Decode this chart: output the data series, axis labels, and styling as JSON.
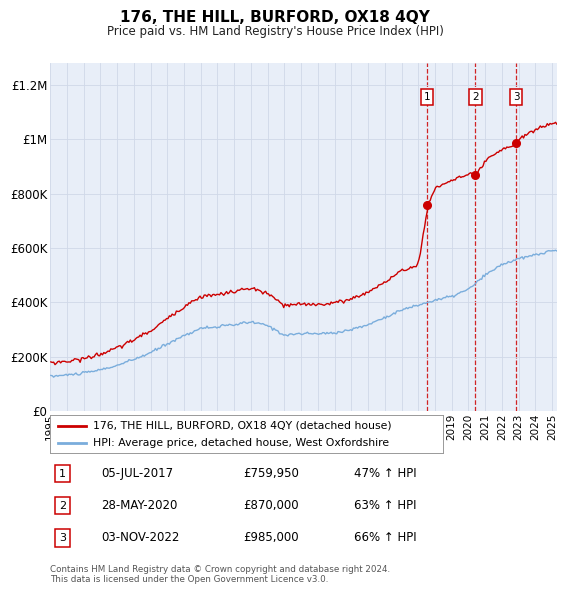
{
  "title": "176, THE HILL, BURFORD, OX18 4QY",
  "subtitle": "Price paid vs. HM Land Registry's House Price Index (HPI)",
  "yticks": [
    0,
    200000,
    400000,
    600000,
    800000,
    1000000,
    1200000
  ],
  "ytick_labels": [
    "£0",
    "£200K",
    "£400K",
    "£600K",
    "£800K",
    "£1M",
    "£1.2M"
  ],
  "sale_prices": [
    759950,
    870000,
    985000
  ],
  "sale_labels": [
    "1",
    "2",
    "3"
  ],
  "sale_year_floats": [
    2017.508,
    2020.41,
    2022.84
  ],
  "sale_info": [
    {
      "label": "1",
      "date": "05-JUL-2017",
      "price": "£759,950",
      "pct": "47% ↑ HPI"
    },
    {
      "label": "2",
      "date": "28-MAY-2020",
      "price": "£870,000",
      "pct": "63% ↑ HPI"
    },
    {
      "label": "3",
      "date": "03-NOV-2022",
      "price": "£985,000",
      "pct": "66% ↑ HPI"
    }
  ],
  "legend_line1": "176, THE HILL, BURFORD, OX18 4QY (detached house)",
  "legend_line2": "HPI: Average price, detached house, West Oxfordshire",
  "footer": "Contains HM Land Registry data © Crown copyright and database right 2024.\nThis data is licensed under the Open Government Licence v3.0.",
  "red_color": "#cc0000",
  "blue_color": "#7aaddc",
  "bg_color": "#e8eef8",
  "grid_color": "#d0d8e8",
  "dashed_color": "#cc0000",
  "hpi_control_years": [
    1995,
    1996,
    1997,
    1998,
    1999,
    2000,
    2001,
    2002,
    2003,
    2004,
    2005,
    2006,
    2007,
    2008,
    2009,
    2010,
    2011,
    2012,
    2013,
    2014,
    2015,
    2016,
    2017,
    2018,
    2019,
    2020,
    2021,
    2022,
    2023,
    2024,
    2025
  ],
  "hpi_control_vals": [
    128000,
    133000,
    140000,
    152000,
    168000,
    190000,
    215000,
    248000,
    278000,
    305000,
    310000,
    318000,
    328000,
    315000,
    280000,
    285000,
    285000,
    288000,
    300000,
    318000,
    345000,
    372000,
    390000,
    408000,
    422000,
    448000,
    500000,
    540000,
    560000,
    575000,
    590000
  ],
  "red_control_years": [
    1995,
    1996,
    1997,
    1998,
    1999,
    2000,
    2001,
    2002,
    2003,
    2004,
    2005,
    2006,
    2007,
    2008,
    2009,
    2010,
    2011,
    2012,
    2013,
    2014,
    2015,
    2016,
    2017,
    2017.6,
    2018,
    2019,
    2020,
    2020.5,
    2021,
    2022,
    2022.9,
    2023,
    2024,
    2025
  ],
  "red_control_vals": [
    178000,
    183000,
    193000,
    210000,
    232000,
    263000,
    295000,
    340000,
    385000,
    422000,
    428000,
    440000,
    452000,
    432000,
    388000,
    393000,
    393000,
    398000,
    413000,
    438000,
    475000,
    515000,
    540000,
    759950,
    820000,
    850000,
    870000,
    870000,
    920000,
    960000,
    985000,
    1000000,
    1035000,
    1060000
  ]
}
